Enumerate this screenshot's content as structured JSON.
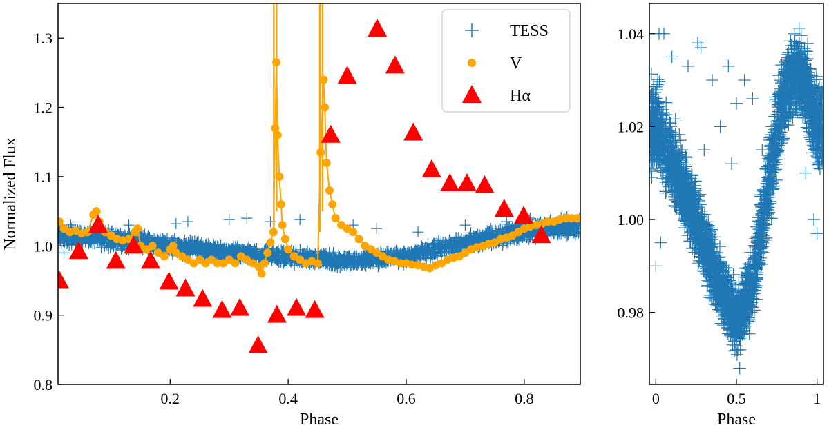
{
  "chart_data": [
    {
      "type": "scatter",
      "name": "left-panel",
      "xlabel": "Phase",
      "ylabel": "Normalized Flux",
      "xlim": [
        0.01,
        0.895
      ],
      "ylim": [
        0.8,
        1.35
      ],
      "xticks": [
        0.2,
        0.4,
        0.6,
        0.8
      ],
      "xtick_labels": [
        "0.2",
        "0.4",
        "0.6",
        "0.8"
      ],
      "yticks": [
        0.8,
        0.9,
        1.0,
        1.1,
        1.2,
        1.3
      ],
      "ytick_labels": [
        "0.8",
        "0.9",
        "1.0",
        "1.1",
        "1.2",
        "1.3"
      ],
      "legend": {
        "position": "top-right",
        "entries": [
          {
            "label": "TESS",
            "marker": "plus",
            "color": "#1f77b4"
          },
          {
            "label": "V",
            "marker": "circle",
            "color": "#ffa500"
          },
          {
            "label": "Hα",
            "marker": "triangle",
            "color": "#ff0000"
          }
        ]
      },
      "series": [
        {
          "name": "TESS",
          "marker": "plus",
          "color": "#1f77b4",
          "description_points": "dense band",
          "band": {
            "x": [
              0.01,
              0.1,
              0.2,
              0.3,
              0.4,
              0.5,
              0.6,
              0.7,
              0.8,
              0.895
            ],
            "center": [
              1.016,
              1.01,
              1.0,
              0.99,
              0.984,
              0.978,
              0.985,
              1.005,
              1.022,
              1.028
            ],
            "halfwidth": [
              0.02,
              0.018,
              0.016,
              0.014,
              0.014,
              0.012,
              0.014,
              0.016,
              0.018,
              0.02
            ]
          },
          "outliers": [
            {
              "x": 0.21,
              "y": 1.032
            },
            {
              "x": 0.23,
              "y": 1.035
            },
            {
              "x": 0.3,
              "y": 1.038
            },
            {
              "x": 0.33,
              "y": 1.04
            },
            {
              "x": 0.37,
              "y": 1.035
            },
            {
              "x": 0.42,
              "y": 1.038
            },
            {
              "x": 0.51,
              "y": 1.03
            },
            {
              "x": 0.55,
              "y": 1.025
            },
            {
              "x": 0.13,
              "y": 1.03
            },
            {
              "x": 0.62,
              "y": 1.02
            },
            {
              "x": 0.7,
              "y": 1.03
            },
            {
              "x": 0.77,
              "y": 1.035
            },
            {
              "x": 0.81,
              "y": 1.04
            },
            {
              "x": 0.02,
              "y": 0.99
            },
            {
              "x": 0.47,
              "y": 0.99
            },
            {
              "x": 0.28,
              "y": 1.0
            }
          ]
        },
        {
          "name": "V",
          "marker": "circle",
          "color": "#ffa500",
          "points": [
            [
              0.012,
              1.035
            ],
            [
              0.02,
              1.025
            ],
            [
              0.03,
              1.02
            ],
            [
              0.04,
              1.022
            ],
            [
              0.05,
              1.018
            ],
            [
              0.06,
              1.02
            ],
            [
              0.07,
              1.045
            ],
            [
              0.075,
              1.05
            ],
            [
              0.08,
              1.035
            ],
            [
              0.09,
              1.02
            ],
            [
              0.1,
              1.015
            ],
            [
              0.11,
              1.01
            ],
            [
              0.12,
              1.008
            ],
            [
              0.13,
              1.01
            ],
            [
              0.14,
              1.02
            ],
            [
              0.145,
              1.025
            ],
            [
              0.15,
              1.0
            ],
            [
              0.16,
              0.995
            ],
            [
              0.17,
              1.0
            ],
            [
              0.18,
              0.99
            ],
            [
              0.19,
              0.985
            ],
            [
              0.2,
              0.995
            ],
            [
              0.205,
              1.0
            ],
            [
              0.21,
              0.99
            ],
            [
              0.22,
              0.985
            ],
            [
              0.23,
              0.98
            ],
            [
              0.24,
              0.975
            ],
            [
              0.25,
              0.98
            ],
            [
              0.26,
              0.975
            ],
            [
              0.27,
              0.98
            ],
            [
              0.28,
              0.975
            ],
            [
              0.29,
              0.975
            ],
            [
              0.3,
              0.98
            ],
            [
              0.31,
              0.975
            ],
            [
              0.32,
              0.985
            ],
            [
              0.33,
              0.98
            ],
            [
              0.34,
              0.975
            ],
            [
              0.35,
              0.97
            ],
            [
              0.355,
              0.96
            ],
            [
              0.36,
              0.975
            ],
            [
              0.365,
              0.99
            ],
            [
              0.37,
              1.005
            ],
            [
              0.375,
              1.02
            ],
            [
              0.378,
              1.17
            ],
            [
              0.38,
              1.265
            ],
            [
              0.382,
              1.16
            ],
            [
              0.385,
              1.1
            ],
            [
              0.388,
              1.06
            ],
            [
              0.39,
              1.03
            ],
            [
              0.395,
              1.01
            ],
            [
              0.4,
              0.995
            ],
            [
              0.41,
              0.985
            ],
            [
              0.42,
              0.98
            ],
            [
              0.43,
              0.975
            ],
            [
              0.44,
              0.978
            ],
            [
              0.45,
              0.975
            ],
            [
              0.455,
              1.135
            ],
            [
              0.46,
              1.24
            ],
            [
              0.462,
              1.2
            ],
            [
              0.465,
              1.12
            ],
            [
              0.47,
              1.08
            ],
            [
              0.475,
              1.06
            ],
            [
              0.48,
              1.04
            ],
            [
              0.49,
              1.03
            ],
            [
              0.5,
              1.025
            ],
            [
              0.51,
              1.02
            ],
            [
              0.52,
              1.01
            ],
            [
              0.53,
              1.0
            ],
            [
              0.54,
              0.995
            ],
            [
              0.55,
              0.99
            ],
            [
              0.56,
              0.985
            ],
            [
              0.57,
              0.98
            ],
            [
              0.58,
              0.978
            ],
            [
              0.59,
              0.975
            ],
            [
              0.6,
              0.975
            ],
            [
              0.61,
              0.973
            ],
            [
              0.62,
              0.972
            ],
            [
              0.63,
              0.97
            ],
            [
              0.64,
              0.968
            ],
            [
              0.65,
              0.972
            ],
            [
              0.66,
              0.975
            ],
            [
              0.67,
              0.98
            ],
            [
              0.68,
              0.983
            ],
            [
              0.69,
              0.985
            ],
            [
              0.7,
              0.99
            ],
            [
              0.71,
              0.995
            ],
            [
              0.72,
              0.998
            ],
            [
              0.73,
              1.0
            ],
            [
              0.74,
              1.003
            ],
            [
              0.75,
              1.005
            ],
            [
              0.76,
              1.01
            ],
            [
              0.77,
              1.012
            ],
            [
              0.78,
              1.015
            ],
            [
              0.79,
              1.02
            ],
            [
              0.8,
              1.025
            ],
            [
              0.81,
              1.028
            ],
            [
              0.82,
              1.03
            ],
            [
              0.83,
              1.032
            ],
            [
              0.84,
              1.035
            ],
            [
              0.85,
              1.035
            ],
            [
              0.86,
              1.038
            ],
            [
              0.87,
              1.04
            ],
            [
              0.88,
              1.04
            ],
            [
              0.89,
              1.04
            ]
          ],
          "flare_segments": [
            {
              "x": 0.378,
              "y_top": 1.35
            },
            {
              "x": 0.456,
              "y_top": 1.35
            }
          ]
        },
        {
          "name": "Hα",
          "marker": "triangle",
          "color": "#ff0000",
          "points": [
            [
              0.012,
              0.95
            ],
            [
              0.045,
              0.992
            ],
            [
              0.078,
              1.03
            ],
            [
              0.108,
              0.978
            ],
            [
              0.138,
              1.0
            ],
            [
              0.167,
              0.978
            ],
            [
              0.198,
              0.948
            ],
            [
              0.226,
              0.938
            ],
            [
              0.255,
              0.923
            ],
            [
              0.288,
              0.907
            ],
            [
              0.318,
              0.91
            ],
            [
              0.349,
              0.856
            ],
            [
              0.381,
              0.9
            ],
            [
              0.414,
              0.91
            ],
            [
              0.445,
              0.907
            ],
            [
              0.472,
              1.16
            ],
            [
              0.5,
              1.245
            ],
            [
              0.551,
              1.313
            ],
            [
              0.581,
              1.26
            ],
            [
              0.612,
              1.163
            ],
            [
              0.643,
              1.11
            ],
            [
              0.674,
              1.09
            ],
            [
              0.703,
              1.09
            ],
            [
              0.733,
              1.087
            ],
            [
              0.766,
              1.053
            ],
            [
              0.799,
              1.043
            ],
            [
              0.829,
              1.015
            ]
          ]
        }
      ]
    },
    {
      "type": "scatter",
      "name": "right-panel",
      "xlabel": "Phase",
      "ylabel": "",
      "xlim": [
        -0.04,
        1.04
      ],
      "ylim": [
        0.9645,
        1.0465
      ],
      "xticks": [
        0,
        0.5,
        1
      ],
      "xtick_labels": [
        "0",
        "0.5",
        "1"
      ],
      "yticks": [
        0.98,
        1.0,
        1.02,
        1.04
      ],
      "ytick_labels": [
        "0.98",
        "1.00",
        "1.02",
        "1.04"
      ],
      "series": [
        {
          "name": "TESS",
          "marker": "plus",
          "color": "#1f77b4",
          "band": {
            "x": [
              0.0,
              0.1,
              0.2,
              0.3,
              0.4,
              0.5,
              0.6,
              0.7,
              0.8,
              0.9,
              1.0
            ],
            "center": [
              1.02,
              1.012,
              1.004,
              0.995,
              0.986,
              0.978,
              0.986,
              1.008,
              1.028,
              1.032,
              1.02
            ],
            "halfwidth": [
              0.013,
              0.012,
              0.011,
              0.01,
              0.009,
              0.009,
              0.01,
              0.012,
              0.012,
              0.012,
              0.013
            ]
          },
          "outliers": [
            {
              "x": 0.02,
              "y": 1.04
            },
            {
              "x": 0.05,
              "y": 1.04
            },
            {
              "x": 0.1,
              "y": 1.035
            },
            {
              "x": 0.2,
              "y": 1.033
            },
            {
              "x": 0.26,
              "y": 1.038
            },
            {
              "x": 0.28,
              "y": 1.037
            },
            {
              "x": 0.35,
              "y": 1.03
            },
            {
              "x": 0.45,
              "y": 1.033
            },
            {
              "x": 0.5,
              "y": 1.025
            },
            {
              "x": 0.55,
              "y": 1.03
            },
            {
              "x": 0.6,
              "y": 1.026
            },
            {
              "x": 0.4,
              "y": 1.02
            },
            {
              "x": 0.3,
              "y": 1.015
            },
            {
              "x": 0.47,
              "y": 1.012
            },
            {
              "x": 0.52,
              "y": 0.968
            },
            {
              "x": 0.0,
              "y": 0.99
            },
            {
              "x": 0.03,
              "y": 0.995
            },
            {
              "x": 0.98,
              "y": 1.0
            },
            {
              "x": 1.0,
              "y": 0.997
            },
            {
              "x": 0.93,
              "y": 1.01
            },
            {
              "x": 0.72,
              "y": 1.02
            },
            {
              "x": 0.66,
              "y": 1.015
            }
          ]
        }
      ]
    }
  ]
}
